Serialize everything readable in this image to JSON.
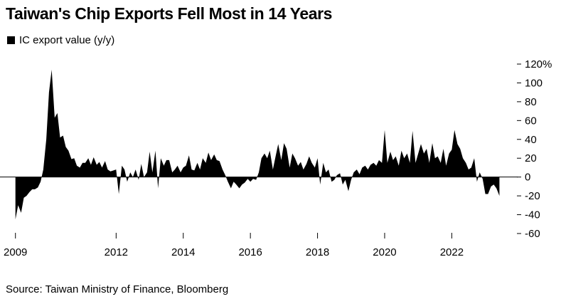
{
  "title": "Taiwan's Chip Exports Fell Most in 14 Years",
  "legend": {
    "label": "IC export value (y/y)",
    "color": "#000000"
  },
  "source": "Source: Taiwan Ministry of Finance, Bloomberg",
  "chart_data": {
    "type": "area",
    "title": "Taiwan's Chip Exports Fell Most in 14 Years",
    "series": [
      {
        "name": "IC export value (y/y)",
        "unit": "%",
        "points": [
          [
            2009.0,
            -45
          ],
          [
            2009.08,
            -30
          ],
          [
            2009.17,
            -38
          ],
          [
            2009.25,
            -22
          ],
          [
            2009.33,
            -20
          ],
          [
            2009.42,
            -16
          ],
          [
            2009.5,
            -13
          ],
          [
            2009.58,
            -13
          ],
          [
            2009.67,
            -11
          ],
          [
            2009.75,
            -5
          ],
          [
            2009.83,
            8
          ],
          [
            2009.92,
            40
          ],
          [
            2010.0,
            90
          ],
          [
            2010.08,
            114
          ],
          [
            2010.17,
            63
          ],
          [
            2010.25,
            68
          ],
          [
            2010.33,
            42
          ],
          [
            2010.42,
            44
          ],
          [
            2010.5,
            32
          ],
          [
            2010.58,
            28
          ],
          [
            2010.67,
            19
          ],
          [
            2010.75,
            20
          ],
          [
            2010.83,
            12
          ],
          [
            2010.92,
            10
          ],
          [
            2011.0,
            15
          ],
          [
            2011.08,
            15
          ],
          [
            2011.17,
            20
          ],
          [
            2011.25,
            13
          ],
          [
            2011.33,
            21
          ],
          [
            2011.42,
            13
          ],
          [
            2011.5,
            16
          ],
          [
            2011.58,
            10
          ],
          [
            2011.67,
            17
          ],
          [
            2011.75,
            8
          ],
          [
            2011.83,
            6
          ],
          [
            2011.92,
            7
          ],
          [
            2012.0,
            8
          ],
          [
            2012.08,
            -18
          ],
          [
            2012.17,
            12
          ],
          [
            2012.25,
            8
          ],
          [
            2012.33,
            -5
          ],
          [
            2012.42,
            5
          ],
          [
            2012.5,
            0
          ],
          [
            2012.58,
            8
          ],
          [
            2012.67,
            -3
          ],
          [
            2012.75,
            14
          ],
          [
            2012.83,
            0
          ],
          [
            2012.92,
            5
          ],
          [
            2013.0,
            27
          ],
          [
            2013.08,
            5
          ],
          [
            2013.17,
            28
          ],
          [
            2013.25,
            -12
          ],
          [
            2013.33,
            20
          ],
          [
            2013.42,
            12
          ],
          [
            2013.5,
            18
          ],
          [
            2013.58,
            18
          ],
          [
            2013.67,
            5
          ],
          [
            2013.75,
            8
          ],
          [
            2013.83,
            12
          ],
          [
            2013.92,
            5
          ],
          [
            2014.0,
            10
          ],
          [
            2014.08,
            12
          ],
          [
            2014.17,
            23
          ],
          [
            2014.25,
            8
          ],
          [
            2014.33,
            7
          ],
          [
            2014.42,
            15
          ],
          [
            2014.5,
            8
          ],
          [
            2014.58,
            20
          ],
          [
            2014.67,
            15
          ],
          [
            2014.75,
            26
          ],
          [
            2014.83,
            18
          ],
          [
            2014.92,
            24
          ],
          [
            2015.0,
            18
          ],
          [
            2015.08,
            17
          ],
          [
            2015.17,
            8
          ],
          [
            2015.25,
            2
          ],
          [
            2015.33,
            -5
          ],
          [
            2015.42,
            -12
          ],
          [
            2015.5,
            -5
          ],
          [
            2015.58,
            -8
          ],
          [
            2015.67,
            -12
          ],
          [
            2015.75,
            -8
          ],
          [
            2015.83,
            -6
          ],
          [
            2015.92,
            -2
          ],
          [
            2016.0,
            -5
          ],
          [
            2016.08,
            -2
          ],
          [
            2016.17,
            -3
          ],
          [
            2016.25,
            5
          ],
          [
            2016.33,
            20
          ],
          [
            2016.42,
            25
          ],
          [
            2016.5,
            20
          ],
          [
            2016.58,
            28
          ],
          [
            2016.67,
            8
          ],
          [
            2016.75,
            22
          ],
          [
            2016.83,
            35
          ],
          [
            2016.92,
            18
          ],
          [
            2017.0,
            36
          ],
          [
            2017.08,
            30
          ],
          [
            2017.17,
            10
          ],
          [
            2017.25,
            25
          ],
          [
            2017.33,
            20
          ],
          [
            2017.42,
            12
          ],
          [
            2017.5,
            16
          ],
          [
            2017.58,
            8
          ],
          [
            2017.67,
            14
          ],
          [
            2017.75,
            22
          ],
          [
            2017.83,
            15
          ],
          [
            2017.92,
            10
          ],
          [
            2018.0,
            20
          ],
          [
            2018.08,
            -8
          ],
          [
            2018.17,
            15
          ],
          [
            2018.25,
            5
          ],
          [
            2018.33,
            8
          ],
          [
            2018.42,
            -5
          ],
          [
            2018.5,
            -3
          ],
          [
            2018.58,
            2
          ],
          [
            2018.67,
            4
          ],
          [
            2018.75,
            -8
          ],
          [
            2018.83,
            -3
          ],
          [
            2018.92,
            -15
          ],
          [
            2019.0,
            -3
          ],
          [
            2019.08,
            5
          ],
          [
            2019.17,
            8
          ],
          [
            2019.25,
            3
          ],
          [
            2019.33,
            10
          ],
          [
            2019.42,
            12
          ],
          [
            2019.5,
            8
          ],
          [
            2019.58,
            13
          ],
          [
            2019.67,
            15
          ],
          [
            2019.75,
            12
          ],
          [
            2019.83,
            18
          ],
          [
            2019.92,
            15
          ],
          [
            2020.0,
            50
          ],
          [
            2020.08,
            15
          ],
          [
            2020.17,
            27
          ],
          [
            2020.25,
            18
          ],
          [
            2020.33,
            22
          ],
          [
            2020.42,
            12
          ],
          [
            2020.5,
            28
          ],
          [
            2020.58,
            20
          ],
          [
            2020.67,
            25
          ],
          [
            2020.75,
            15
          ],
          [
            2020.83,
            49
          ],
          [
            2020.92,
            15
          ],
          [
            2021.0,
            25
          ],
          [
            2021.08,
            35
          ],
          [
            2021.17,
            25
          ],
          [
            2021.25,
            30
          ],
          [
            2021.33,
            15
          ],
          [
            2021.42,
            36
          ],
          [
            2021.5,
            20
          ],
          [
            2021.58,
            22
          ],
          [
            2021.67,
            15
          ],
          [
            2021.75,
            30
          ],
          [
            2021.83,
            12
          ],
          [
            2021.92,
            25
          ],
          [
            2022.0,
            29
          ],
          [
            2022.08,
            50
          ],
          [
            2022.17,
            35
          ],
          [
            2022.25,
            30
          ],
          [
            2022.33,
            20
          ],
          [
            2022.42,
            15
          ],
          [
            2022.5,
            8
          ],
          [
            2022.58,
            10
          ],
          [
            2022.67,
            20
          ],
          [
            2022.75,
            -5
          ],
          [
            2022.83,
            5
          ],
          [
            2022.92,
            -2
          ],
          [
            2023.0,
            -18
          ],
          [
            2023.08,
            -18
          ],
          [
            2023.17,
            -10
          ],
          [
            2023.25,
            -8
          ],
          [
            2023.33,
            -12
          ],
          [
            2023.42,
            -20
          ]
        ]
      }
    ],
    "x_ticks": [
      "2009",
      "2012",
      "2014",
      "2016",
      "2018",
      "2020",
      "2022"
    ],
    "x_tick_values": [
      2009,
      2012,
      2014,
      2016,
      2018,
      2020,
      2022
    ],
    "y_ticks": [
      "120%",
      "100",
      "80",
      "60",
      "40",
      "20",
      "0",
      "-20",
      "-40",
      "-60"
    ],
    "y_tick_values": [
      120,
      100,
      80,
      60,
      40,
      20,
      0,
      -20,
      -40,
      -60
    ],
    "xlim": [
      2008.54,
      2023.75
    ],
    "ylim": [
      -60,
      120
    ],
    "zero_line": true,
    "y_axis_side": "right"
  }
}
